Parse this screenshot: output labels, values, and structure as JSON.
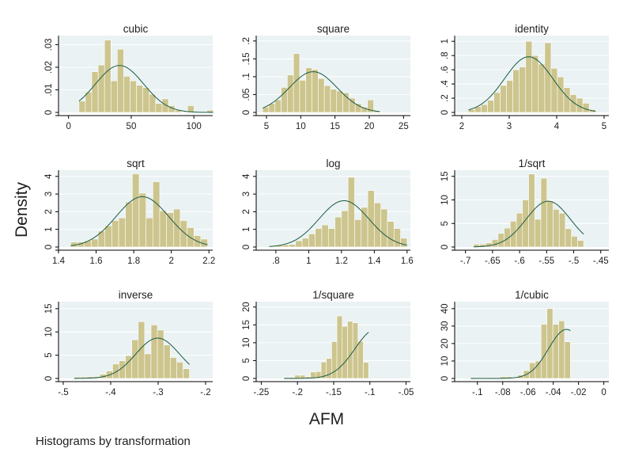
{
  "figure": {
    "ylabel": "Density",
    "xlabel": "AFM",
    "note": "Histograms by transformation"
  },
  "colors": {
    "background": "#ffffff",
    "plot_background": "#eaf2f3",
    "bar_fill": "#cdc58e",
    "bar_stroke": "#ffffff",
    "curve": "#1a5c46",
    "gridline": "#ffffff",
    "axis": "#000000",
    "text": "#1e1e1e"
  },
  "chart_data": [
    {
      "type": "bar",
      "title": "cubic",
      "xlim": [
        -8,
        115
      ],
      "ylim": [
        0,
        0.034
      ],
      "xticks": [
        0,
        50,
        100
      ],
      "xtick_labels": [
        "0",
        "50",
        "100"
      ],
      "yticks": [
        0,
        0.01,
        0.02,
        0.03
      ],
      "ytick_labels": [
        "0",
        ".01",
        ".02",
        ".03"
      ],
      "bin_start": 8.3,
      "bin_width": 5.1,
      "values": [
        0.005,
        0.009,
        0.018,
        0.021,
        0.032,
        0.014,
        0.028,
        0.016,
        0.014,
        0.012,
        0.011,
        0.008,
        0.004,
        0.006,
        0.003,
        0.001,
        0.0,
        0.003,
        0.0,
        0.0,
        0.001
      ],
      "density_curve": {
        "mean": 40.7,
        "sd": 19.2
      }
    },
    {
      "type": "bar",
      "title": "square",
      "xlim": [
        3.5,
        26
      ],
      "ylim": [
        0,
        0.215
      ],
      "xticks": [
        5,
        10,
        15,
        20,
        25
      ],
      "xtick_labels": [
        "5",
        "10",
        "15",
        "20",
        "25"
      ],
      "yticks": [
        0,
        0.05,
        0.1,
        0.15,
        0.2
      ],
      "ytick_labels": [
        "0",
        ".05",
        ".1",
        ".15",
        ".2"
      ],
      "bin_start": 4.44,
      "bin_width": 0.9,
      "values": [
        0.015,
        0.025,
        0.035,
        0.07,
        0.105,
        0.165,
        0.09,
        0.125,
        0.12,
        0.095,
        0.075,
        0.065,
        0.06,
        0.055,
        0.04,
        0.025,
        0.015,
        0.035,
        0.005
      ],
      "density_curve": {
        "mean": 11.82,
        "sd": 3.5
      }
    },
    {
      "type": "bar",
      "title": "identity",
      "xlim": [
        1.85,
        5.1
      ],
      "ylim": [
        0,
        1.08
      ],
      "xticks": [
        2,
        3,
        4,
        5
      ],
      "xtick_labels": [
        "2",
        "3",
        "4",
        "5"
      ],
      "yticks": [
        0,
        0.2,
        0.4,
        0.6,
        0.8,
        1
      ],
      "ytick_labels": [
        "0",
        ".2",
        ".4",
        ".6",
        ".8",
        "1"
      ],
      "bin_start": 2.14,
      "bin_width": 0.134,
      "values": [
        0.04,
        0.08,
        0.11,
        0.17,
        0.28,
        0.38,
        0.45,
        0.6,
        0.64,
        1.0,
        0.8,
        0.68,
        0.98,
        0.62,
        0.5,
        0.35,
        0.25,
        0.2,
        0.13,
        0.04
      ],
      "density_curve": {
        "mean": 3.41,
        "sd": 0.51
      }
    },
    {
      "type": "bar",
      "title": "sqrt",
      "xlim": [
        1.4,
        2.22
      ],
      "ylim": [
        0,
        4.35
      ],
      "xticks": [
        1.4,
        1.6,
        1.8,
        2,
        2.2
      ],
      "xtick_labels": [
        "1.4",
        "1.6",
        "1.8",
        "2",
        "2.2"
      ],
      "yticks": [
        0,
        1,
        2,
        3,
        4
      ],
      "ytick_labels": [
        "0",
        "1",
        "2",
        "3",
        "4"
      ],
      "bin_start": 1.465,
      "bin_width": 0.0364,
      "values": [
        0.28,
        0.28,
        0.35,
        0.45,
        0.9,
        1.2,
        1.5,
        1.65,
        2.55,
        4.15,
        3.05,
        1.65,
        3.7,
        2.05,
        1.95,
        2.15,
        1.5,
        1.1,
        0.65,
        0.45
      ],
      "density_curve": {
        "mean": 1.846,
        "sd": 0.14
      }
    },
    {
      "type": "bar",
      "title": "log",
      "xlim": [
        0.68,
        1.62
      ],
      "ylim": [
        0,
        4.35
      ],
      "xticks": [
        0.8,
        1,
        1.2,
        1.4,
        1.6
      ],
      "xtick_labels": [
        ".8",
        "1",
        "1.2",
        "1.4",
        "1.6"
      ],
      "yticks": [
        0,
        1,
        2,
        3,
        4
      ],
      "ytick_labels": [
        "0",
        "1",
        "2",
        "3",
        "4"
      ],
      "bin_start": 0.76,
      "bin_width": 0.04,
      "values": [
        0.08,
        0.1,
        0.12,
        0.15,
        0.35,
        0.5,
        0.75,
        1.05,
        1.25,
        1.05,
        1.7,
        2.05,
        3.95,
        1.55,
        2.25,
        3.2,
        2.5,
        2.15,
        1.45,
        1.05,
        0.5
      ],
      "density_curve": {
        "mean": 1.215,
        "sd": 0.152
      }
    },
    {
      "type": "bar",
      "title": "1/sqrt",
      "xlim": [
        -0.72,
        -0.435
      ],
      "ylim": [
        0,
        16.3
      ],
      "xticks": [
        -0.7,
        -0.65,
        -0.6,
        -0.55,
        -0.5,
        -0.45
      ],
      "xtick_labels": [
        "-.7",
        "-.65",
        "-.6",
        "-.55",
        "-.5",
        "-.45"
      ],
      "yticks": [
        0,
        5,
        10,
        15
      ],
      "ytick_labels": [
        "0",
        "5",
        "10",
        "15"
      ],
      "bin_start": -0.685,
      "bin_width": 0.0113,
      "values": [
        0.6,
        0.6,
        0.9,
        1.6,
        2.9,
        4.0,
        5.5,
        7.2,
        10.0,
        15.5,
        5.9,
        14.6,
        9.8,
        8.0,
        7.2,
        3.9,
        2.3,
        1.4
      ],
      "density_curve": {
        "mean": -0.547,
        "sd": 0.041
      }
    },
    {
      "type": "bar",
      "title": "inverse",
      "xlim": [
        -0.51,
        -0.185
      ],
      "ylim": [
        0,
        16.5
      ],
      "xticks": [
        -0.5,
        -0.4,
        -0.3,
        -0.2
      ],
      "xtick_labels": [
        "-.5",
        "-.4",
        "-.3",
        "-.2"
      ],
      "yticks": [
        0,
        5,
        10,
        15
      ],
      "ytick_labels": [
        "0",
        "5",
        "10",
        "15"
      ],
      "bin_start": -0.477,
      "bin_width": 0.0135,
      "values": [
        0.3,
        0.3,
        0.4,
        0.4,
        0.9,
        1.6,
        3.1,
        3.8,
        4.9,
        8.3,
        12.2,
        5.3,
        11.5,
        10.4,
        7.2,
        4.5,
        3.5,
        2.1
      ],
      "density_curve": {
        "mean": -0.301,
        "sd": 0.046
      }
    },
    {
      "type": "bar",
      "title": "1/square",
      "xlim": [
        -0.257,
        -0.044
      ],
      "ylim": [
        0,
        21.5
      ],
      "xticks": [
        -0.25,
        -0.2,
        -0.15,
        -0.1,
        -0.05
      ],
      "xtick_labels": [
        "-.25",
        "-.2",
        "-.15",
        "-.1",
        "-.05"
      ],
      "yticks": [
        0,
        5,
        10,
        15,
        20
      ],
      "ytick_labels": [
        "0",
        "5",
        "10",
        "15",
        "20"
      ],
      "bin_start": -0.2185,
      "bin_width": 0.0073,
      "values": [
        0.3,
        0.3,
        0.9,
        0.9,
        0.5,
        1.8,
        1.9,
        4.6,
        5.6,
        10.3,
        17.5,
        14.6,
        16.0,
        15.6,
        10.4,
        4.5
      ],
      "density_curve": {
        "mean": -0.0915,
        "sd": 0.029
      }
    },
    {
      "type": "bar",
      "title": "1/cubic",
      "xlim": [
        -0.118,
        0.004
      ],
      "ylim": [
        0,
        44
      ],
      "xticks": [
        -0.1,
        -0.08,
        -0.06,
        -0.04,
        -0.02,
        0
      ],
      "xtick_labels": [
        "-.1",
        "-.08",
        "-.06",
        "-.04",
        "-.02",
        "0"
      ],
      "yticks": [
        0,
        10,
        20,
        30,
        40
      ],
      "ytick_labels": [
        "0",
        "10",
        "20",
        "30",
        "40"
      ],
      "bin_start": -0.1053,
      "bin_width": 0.00464,
      "values": [
        0.5,
        0.0,
        0.0,
        0.5,
        0.0,
        1.0,
        1.0,
        0.0,
        2.0,
        4.5,
        9.0,
        10.0,
        31.0,
        40.0,
        31.0,
        33.0,
        21.0
      ],
      "density_curve": {
        "mean": -0.0295,
        "sd": 0.0142
      }
    }
  ]
}
